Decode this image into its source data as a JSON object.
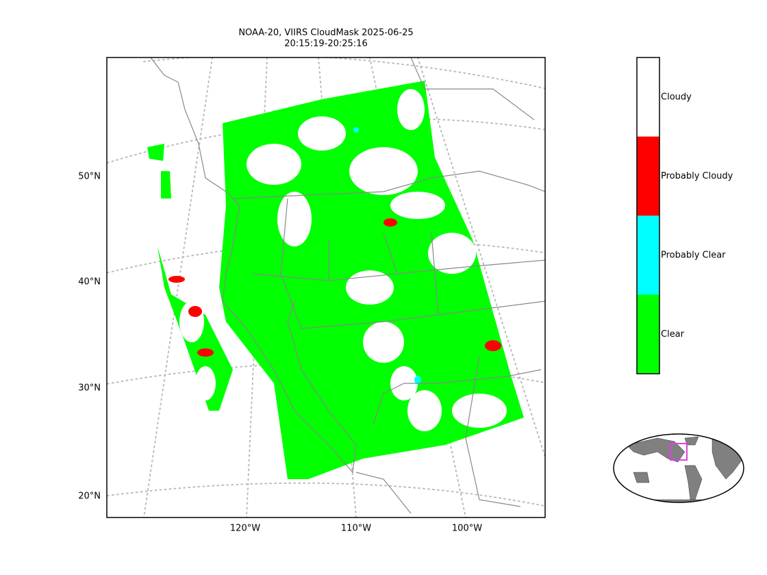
{
  "title_lines": [
    "NOAA-20, VIIRS CloudMask 2025-06-25",
    "20:15:19-20:25:16"
  ],
  "latitude_labels": [
    "50°N",
    "40°N",
    "30°N",
    "20°N"
  ],
  "longitude_labels": [
    "120°W",
    "110°W",
    "100°W"
  ],
  "legend": [
    {
      "label": "Cloudy",
      "color": "#ffffff"
    },
    {
      "label": "Probably Cloudy",
      "color": "#ff0000"
    },
    {
      "label": "Probably Clear",
      "color": "#00ffff"
    },
    {
      "label": "Clear",
      "color": "#00ff00"
    }
  ]
}
